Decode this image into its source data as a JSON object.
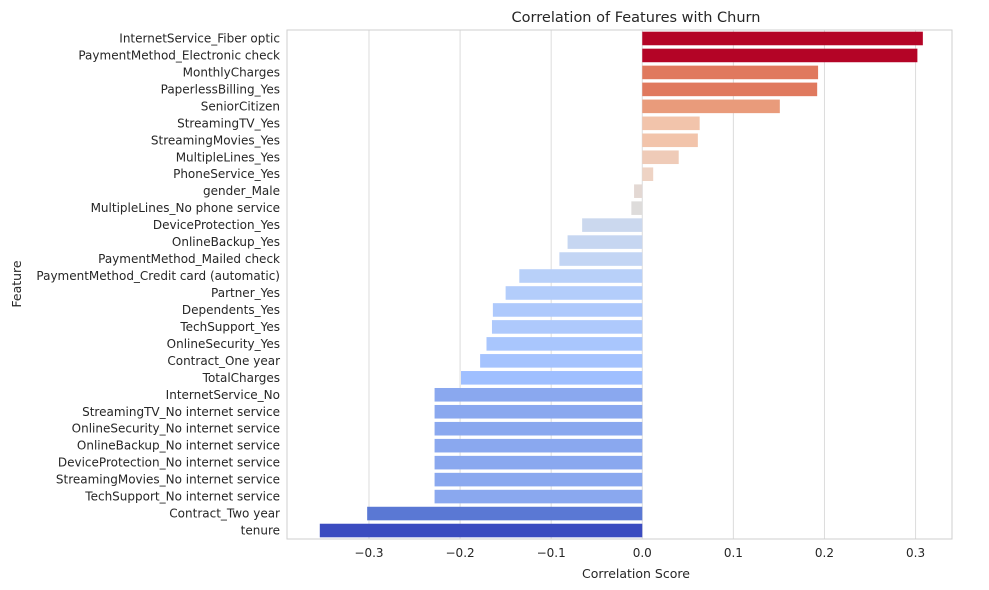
{
  "chart_data": {
    "type": "bar",
    "orientation": "horizontal",
    "title": "Correlation of Features with Churn",
    "xlabel": "Correlation Score",
    "ylabel": "Feature",
    "xlim": [
      -0.39,
      0.34
    ],
    "xticks": [
      -0.3,
      -0.2,
      -0.1,
      0.0,
      0.1,
      0.2,
      0.3
    ],
    "xtick_labels": [
      "−0.3",
      "−0.2",
      "−0.1",
      "0.0",
      "0.1",
      "0.2",
      "0.3"
    ],
    "grid": "vertical",
    "palette": "coolwarm",
    "categories": [
      "InternetService_Fiber optic",
      "PaymentMethod_Electronic check",
      "MonthlyCharges",
      "PaperlessBilling_Yes",
      "SeniorCitizen",
      "StreamingTV_Yes",
      "StreamingMovies_Yes",
      "MultipleLines_Yes",
      "PhoneService_Yes",
      "gender_Male",
      "MultipleLines_No phone service",
      "DeviceProtection_Yes",
      "OnlineBackup_Yes",
      "PaymentMethod_Mailed check",
      "PaymentMethod_Credit card (automatic)",
      "Partner_Yes",
      "Dependents_Yes",
      "TechSupport_Yes",
      "OnlineSecurity_Yes",
      "Contract_One year",
      "TotalCharges",
      "InternetService_No",
      "StreamingTV_No internet service",
      "OnlineSecurity_No internet service",
      "OnlineBackup_No internet service",
      "DeviceProtection_No internet service",
      "StreamingMovies_No internet service",
      "TechSupport_No internet service",
      "Contract_Two year",
      "tenure"
    ],
    "values": [
      0.308,
      0.302,
      0.193,
      0.192,
      0.151,
      0.063,
      0.061,
      0.04,
      0.012,
      -0.009,
      -0.012,
      -0.066,
      -0.082,
      -0.091,
      -0.135,
      -0.15,
      -0.164,
      -0.165,
      -0.171,
      -0.178,
      -0.199,
      -0.228,
      -0.228,
      -0.228,
      -0.228,
      -0.228,
      -0.228,
      -0.228,
      -0.302,
      -0.354
    ],
    "colors": [
      "#b40426",
      "#b40426",
      "#e0795e",
      "#e0795e",
      "#e99b7b",
      "#f2c4ab",
      "#f2c4ab",
      "#efcbb8",
      "#eed3c4",
      "#e3d8d3",
      "#dedcdb",
      "#cbd8ee",
      "#c6d6f1",
      "#c3d5f4",
      "#b8d0f9",
      "#b3cdfb",
      "#aec9fc",
      "#aec9fc",
      "#a9c6fd",
      "#a5c3fe",
      "#9fbfff",
      "#8aa8ef",
      "#8aa8ef",
      "#8aa8ef",
      "#8aa8ef",
      "#8aa8ef",
      "#8aa8ef",
      "#8aa8ef",
      "#5a78d4",
      "#3b4cc0"
    ]
  }
}
